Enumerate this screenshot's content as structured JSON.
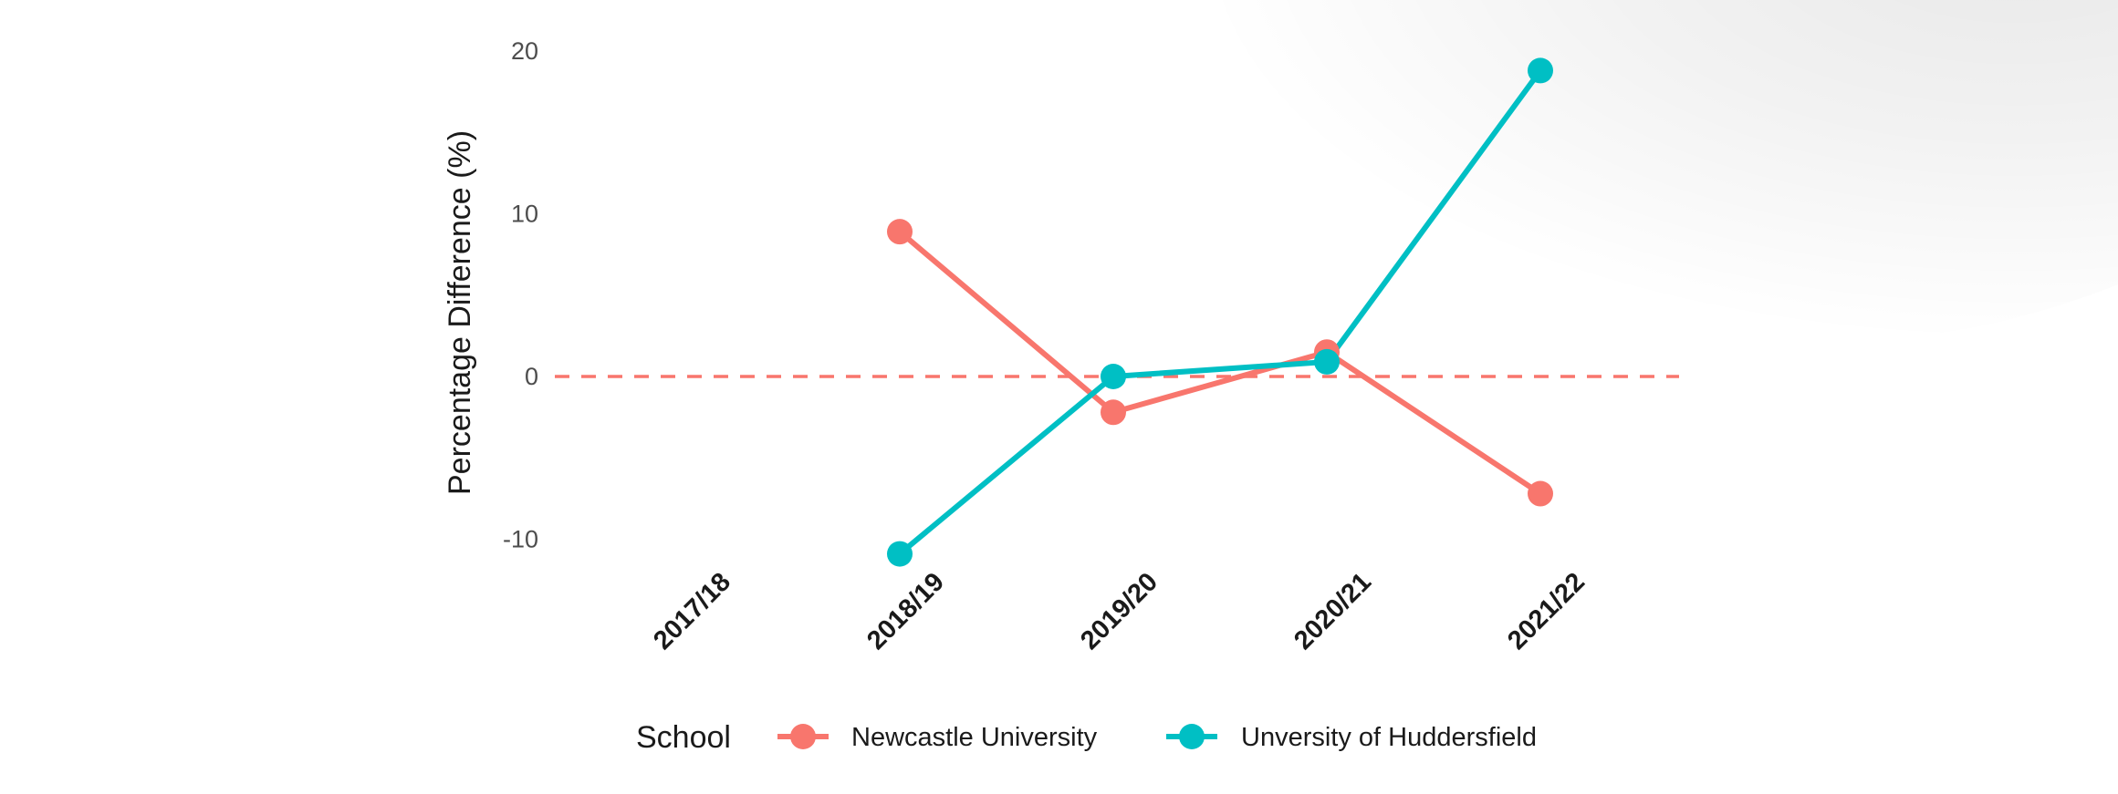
{
  "chart_data": {
    "type": "line",
    "title": "",
    "xlabel": "",
    "ylabel": "Percentage Difference (%)",
    "categories": [
      "2017/18",
      "2018/19",
      "2019/20",
      "2020/21",
      "2021/22"
    ],
    "y_ticks": [
      "20",
      "10",
      "0",
      "-10"
    ],
    "y_tick_values": [
      20,
      10,
      0,
      -10
    ],
    "ylim": [
      -11.5,
      21
    ],
    "reference_line": {
      "value": 0,
      "style": "dashed",
      "color": "#f8766d"
    },
    "grid": false,
    "legend": {
      "title": "School",
      "position": "bottom"
    },
    "series": [
      {
        "name": "Newcastle University",
        "color": "#f8766d",
        "values": [
          null,
          8.9,
          -2.2,
          1.5,
          -7.2
        ]
      },
      {
        "name": "Unversity of Huddersfield",
        "color": "#00bfc4",
        "values": [
          null,
          -10.9,
          0.0,
          0.9,
          18.8
        ]
      }
    ]
  }
}
